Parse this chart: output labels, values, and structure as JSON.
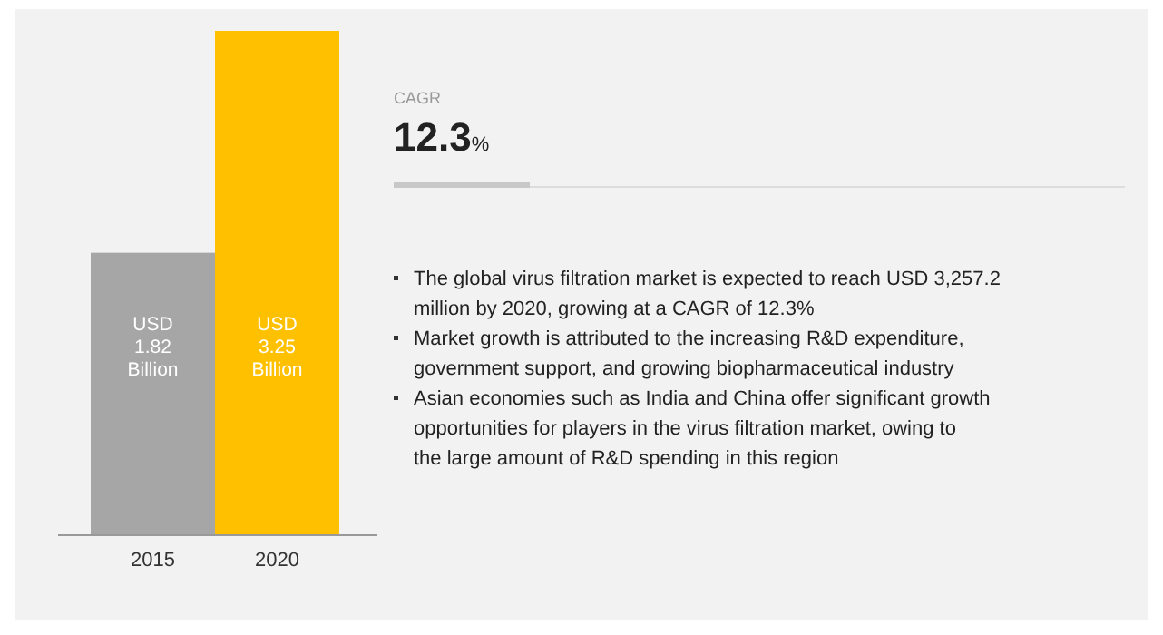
{
  "chart_data": {
    "type": "bar",
    "categories": [
      "2015",
      "2020"
    ],
    "values": [
      1.82,
      3.25
    ],
    "colors": [
      "#a6a6a6",
      "#ffc000"
    ],
    "value_labels": [
      "USD 1.82 Billion",
      "USD 3.25 Billion"
    ],
    "annotations": [
      "CAGR",
      "12.3%",
      "The global virus filtration market is expected to reach USD 3,257.2 million by 2020, growing at a CAGR of 12.3%",
      "Market growth is attributed to the increasing R&D expenditure, government support, and growing biopharmaceutical industry",
      "Asian economies such as India and China offer significant growth opportunities for players in the virus filtration market, owing to the large amount of R&D spending in this region"
    ]
  }
}
